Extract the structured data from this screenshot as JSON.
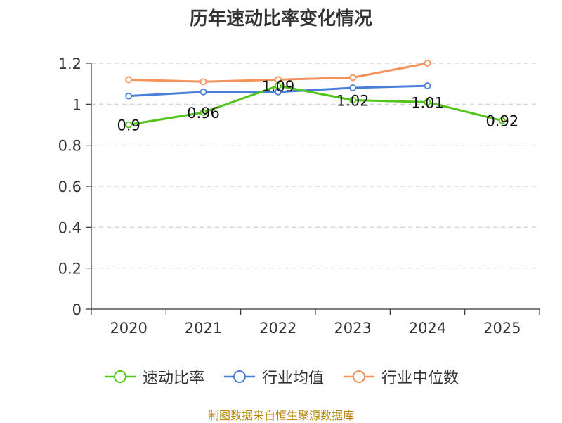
{
  "chart_data": {
    "type": "line",
    "title": "历年速动比率变化情况",
    "categories": [
      "2020",
      "2021",
      "2022",
      "2023",
      "2024",
      "2025"
    ],
    "ylim": [
      0,
      1.2
    ],
    "yticks": [
      "0",
      "0.2",
      "0.4",
      "0.6",
      "0.8",
      "1",
      "1.2"
    ],
    "series": [
      {
        "name": "速动比率",
        "color": "#52c41a",
        "values": [
          0.9,
          0.96,
          1.09,
          1.02,
          1.01,
          0.92
        ],
        "labels": [
          "0.9",
          "0.96",
          "1.09",
          "1.02",
          "1.01",
          "0.92"
        ]
      },
      {
        "name": "行业均值",
        "color": "#4a7fd8",
        "values": [
          1.04,
          1.06,
          1.06,
          1.08,
          1.09,
          null
        ]
      },
      {
        "name": "行业中位数",
        "color": "#f5915a",
        "values": [
          1.12,
          1.11,
          1.12,
          1.13,
          1.2,
          null
        ]
      }
    ]
  },
  "source_text": "制图数据来自恒生聚源数据库"
}
